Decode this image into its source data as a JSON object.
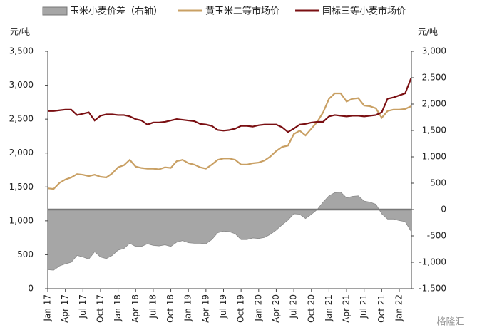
{
  "chart_data": {
    "type": "line",
    "y_unit_left": "元/吨",
    "y_unit_right": "元/吨",
    "legend": "top",
    "watermark": "格隆汇",
    "categories": [
      "Jan 17",
      null,
      null,
      "Apr 17",
      null,
      null,
      "Jul 17",
      null,
      null,
      "Oct 17",
      null,
      null,
      "Jan 18",
      null,
      null,
      "Apr 18",
      null,
      null,
      "Jul 18",
      null,
      null,
      "Oct 18",
      null,
      null,
      "Jan 19",
      null,
      null,
      "Apr 19",
      null,
      null,
      "Jul 19",
      null,
      null,
      "Oct 19",
      null,
      null,
      "Jan 20",
      null,
      null,
      "Apr 20",
      null,
      null,
      "Jul 20",
      null,
      null,
      "Oct 20",
      null,
      null,
      "Jan 21",
      null,
      null,
      "Apr 21",
      null,
      null,
      "Jul 21",
      null,
      null,
      "Oct 21",
      null,
      null,
      "Jan 22",
      null,
      null
    ],
    "series": [
      {
        "name": "玉米小麦价差（右轴）",
        "type": "area",
        "axis": "y2",
        "color": "#a6a6a6",
        "values": [
          -1140,
          -1150,
          -1070,
          -1030,
          -1000,
          -870,
          -900,
          -940,
          -800,
          -900,
          -930,
          -870,
          -770,
          -740,
          -640,
          -700,
          -700,
          -650,
          -680,
          -690,
          -670,
          -700,
          -620,
          -590,
          -630,
          -640,
          -640,
          -650,
          -570,
          -440,
          -410,
          -420,
          -460,
          -570,
          -570,
          -540,
          -550,
          -530,
          -470,
          -390,
          -290,
          -200,
          -80,
          -90,
          -170,
          -90,
          0,
          140,
          260,
          320,
          330,
          220,
          250,
          260,
          160,
          140,
          100,
          -80,
          -180,
          -180,
          -210,
          -230,
          -410
        ]
      },
      {
        "name": "黄玉米二等市场价",
        "type": "line",
        "color": "#c9a064",
        "values": [
          1480,
          1470,
          1560,
          1610,
          1640,
          1690,
          1680,
          1660,
          1680,
          1650,
          1640,
          1700,
          1790,
          1820,
          1900,
          1800,
          1780,
          1770,
          1770,
          1760,
          1790,
          1780,
          1880,
          1900,
          1850,
          1830,
          1790,
          1770,
          1830,
          1900,
          1920,
          1920,
          1900,
          1830,
          1830,
          1850,
          1860,
          1890,
          1950,
          2030,
          2090,
          2110,
          2280,
          2330,
          2260,
          2360,
          2460,
          2600,
          2800,
          2880,
          2880,
          2760,
          2800,
          2810,
          2700,
          2690,
          2660,
          2520,
          2620,
          2640,
          2640,
          2650,
          2690
        ]
      },
      {
        "name": "国标三等小麦市场价",
        "type": "line",
        "color": "#7a0f12",
        "values": [
          2620,
          2620,
          2630,
          2640,
          2640,
          2560,
          2580,
          2600,
          2480,
          2550,
          2570,
          2570,
          2560,
          2560,
          2540,
          2500,
          2480,
          2420,
          2450,
          2450,
          2460,
          2480,
          2500,
          2490,
          2480,
          2470,
          2430,
          2420,
          2400,
          2340,
          2330,
          2340,
          2360,
          2400,
          2400,
          2390,
          2410,
          2420,
          2420,
          2420,
          2380,
          2310,
          2360,
          2420,
          2430,
          2450,
          2460,
          2460,
          2540,
          2560,
          2550,
          2540,
          2550,
          2550,
          2540,
          2550,
          2560,
          2600,
          2800,
          2820,
          2850,
          2880,
          3100
        ]
      }
    ],
    "ylim": [
      0,
      3500
    ],
    "yticks": [
      0,
      500,
      {
        "value": 1000,
        "label": "1,000"
      },
      {
        "value": 1500,
        "label": "1,500"
      },
      {
        "value": 2000,
        "label": "2,000"
      },
      {
        "value": 2500,
        "label": "2,500"
      },
      {
        "value": 3000,
        "label": "3,000"
      },
      {
        "value": 3500,
        "label": "3,500"
      }
    ],
    "y2lim": [
      -1500,
      3000
    ],
    "y2ticks": [
      {
        "value": -1500,
        "label": "-1,500"
      },
      {
        "value": -1000,
        "label": "-1,000"
      },
      -500,
      0,
      500,
      {
        "value": 1000,
        "label": "1,000"
      },
      {
        "value": 1500,
        "label": "1,500"
      },
      {
        "value": 2000,
        "label": "2,000"
      },
      {
        "value": 2500,
        "label": "2,500"
      },
      {
        "value": 3000,
        "label": "3,000"
      }
    ]
  }
}
